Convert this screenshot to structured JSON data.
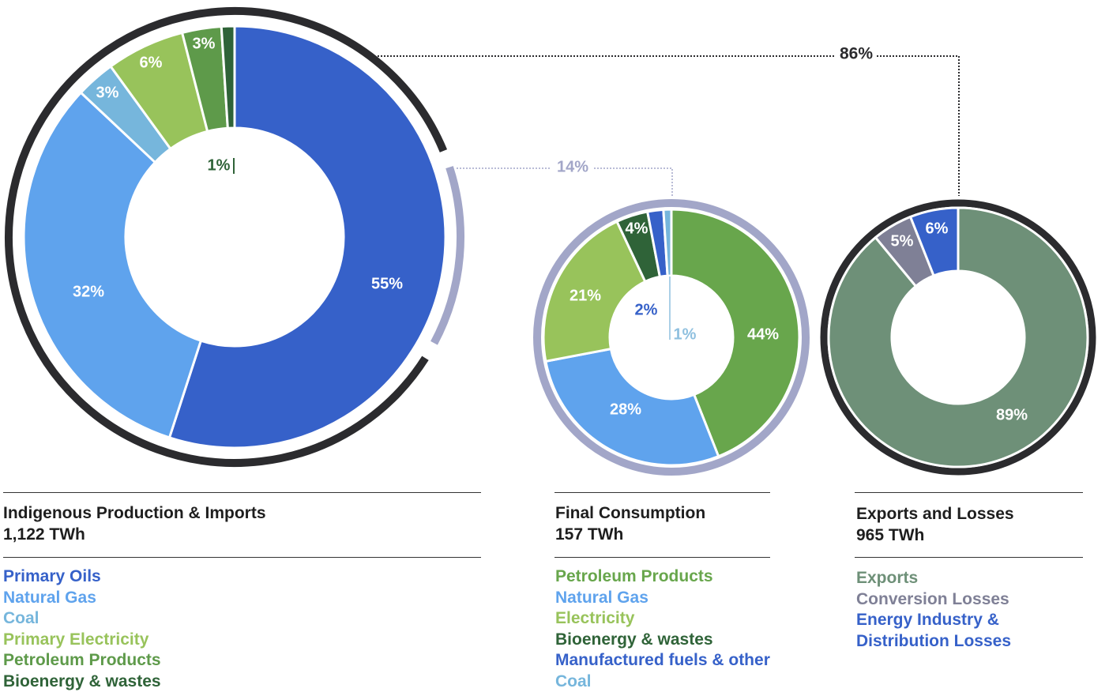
{
  "chart_data": [
    {
      "type": "donut",
      "title": "Indigenous Production & Imports",
      "total": "1,122 TWh",
      "slices": [
        {
          "name": "Primary Oils",
          "value": 55,
          "label": "55%",
          "color": "#3661c9"
        },
        {
          "name": "Natural Gas",
          "value": 32,
          "label": "32%",
          "color": "#5fa3ed"
        },
        {
          "name": "Coal",
          "value": 3,
          "label": "3%",
          "color": "#76b6dc"
        },
        {
          "name": "Primary Electricity",
          "value": 6,
          "label": "6%",
          "color": "#98c35b"
        },
        {
          "name": "Petroleum Products",
          "value": 3,
          "label": "3%",
          "color": "#5e9a4a"
        },
        {
          "name": "Bioenergy & wastes",
          "value": 1,
          "label": "1%",
          "color": "#2f6338"
        }
      ],
      "outer_ring": [
        {
          "label": "86%",
          "value": 86,
          "color": "#2b2b2e"
        },
        {
          "label": "14%",
          "value": 14,
          "color": "#a2a6c8"
        }
      ]
    },
    {
      "type": "donut",
      "title": "Final Consumption",
      "total": "157 TWh",
      "slices": [
        {
          "name": "Petroleum Products",
          "value": 44,
          "label": "44%",
          "color": "#68a64c"
        },
        {
          "name": "Natural Gas",
          "value": 28,
          "label": "28%",
          "color": "#5fa3ed"
        },
        {
          "name": "Electricity",
          "value": 21,
          "label": "21%",
          "color": "#98c35b"
        },
        {
          "name": "Bioenergy & wastes",
          "value": 4,
          "label": "4%",
          "color": "#2f6338"
        },
        {
          "name": "Manufactured fuels & other",
          "value": 2,
          "label": "2%",
          "color": "#3661c9"
        },
        {
          "name": "Coal",
          "value": 1,
          "label": "1%",
          "color": "#76b6dc"
        }
      ]
    },
    {
      "type": "donut",
      "title": "Exports and Losses",
      "total": "965 TWh",
      "slices": [
        {
          "name": "Exports",
          "value": 89,
          "label": "89%",
          "color": "#6e9078"
        },
        {
          "name": "Conversion Losses",
          "value": 5,
          "label": "5%",
          "color": "#7f8096"
        },
        {
          "name": "Energy Industry & Distribution Losses",
          "value": 6,
          "label": "6%",
          "color": "#3661c9"
        }
      ]
    }
  ],
  "panels": {
    "production": {
      "title": "Indigenous Production & Imports",
      "total": "1,122 TWh",
      "legend": [
        "Primary Oils",
        "Natural Gas",
        "Coal",
        "Primary Electricity",
        "Petroleum Products",
        "Bioenergy & wastes"
      ],
      "legend_colors": [
        "#3661c9",
        "#5fa3ed",
        "#76b6dc",
        "#98c35b",
        "#5e9a4a",
        "#2f6338"
      ]
    },
    "consumption": {
      "title": "Final Consumption",
      "total": "157 TWh",
      "legend": [
        "Petroleum Products",
        "Natural Gas",
        "Electricity",
        "Bioenergy & wastes",
        "Manufactured fuels & other",
        "Coal"
      ],
      "legend_colors": [
        "#68a64c",
        "#5fa3ed",
        "#98c35b",
        "#2f6338",
        "#3661c9",
        "#76b6dc"
      ]
    },
    "exports": {
      "title": "Exports and Losses",
      "total": "965 TWh",
      "legend": [
        "Exports",
        "Conversion Losses",
        "Energy Industry &",
        "Distribution Losses"
      ],
      "legend_colors": [
        "#6e9078",
        "#7f8096",
        "#3661c9",
        "#3661c9"
      ]
    }
  }
}
